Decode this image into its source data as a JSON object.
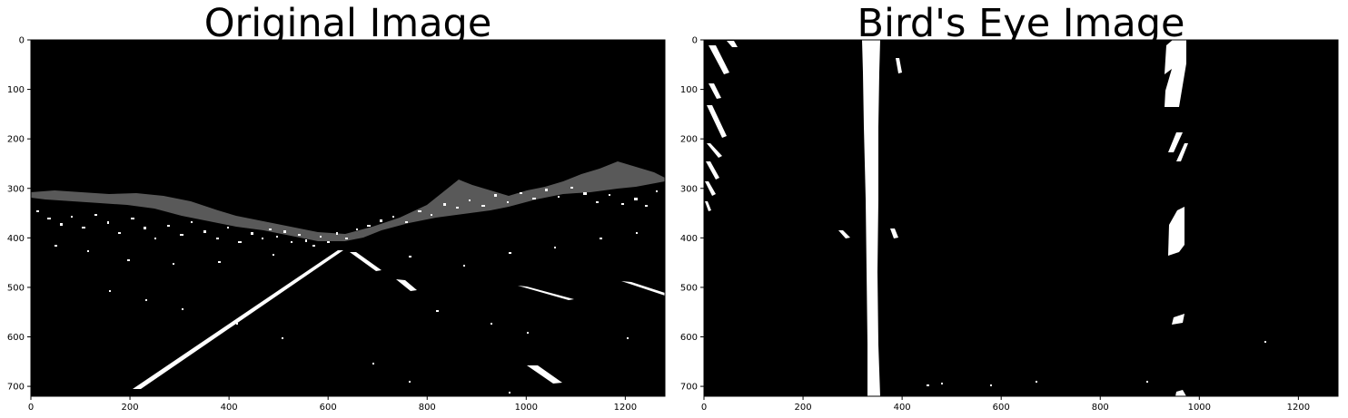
{
  "figure": {
    "panels": [
      {
        "id": "original",
        "title": "Original Image",
        "x_ticks": [
          "0",
          "200",
          "400",
          "600",
          "800",
          "1000",
          "1200"
        ],
        "y_ticks": [
          "0",
          "100",
          "200",
          "300",
          "400",
          "500",
          "600",
          "700"
        ],
        "x_tick_values": [
          0,
          200,
          400,
          600,
          800,
          1000,
          1200
        ],
        "y_tick_values": [
          0,
          100,
          200,
          300,
          400,
          500,
          600,
          700
        ],
        "image_width": 1280,
        "image_height": 720
      },
      {
        "id": "birdseye",
        "title": "Bird's Eye Image",
        "x_ticks": [
          "0",
          "200",
          "400",
          "600",
          "800",
          "1000",
          "1200"
        ],
        "y_ticks": [
          "0",
          "100",
          "200",
          "300",
          "400",
          "500",
          "600",
          "700"
        ],
        "x_tick_values": [
          0,
          200,
          400,
          600,
          800,
          1000,
          1200
        ],
        "y_tick_values": [
          0,
          100,
          200,
          300,
          400,
          500,
          600,
          700
        ],
        "image_width": 1280,
        "image_height": 720
      }
    ],
    "colors": {
      "background": "#ffffff",
      "image_background": "#000000",
      "foreground_pixels": "#ffffff"
    }
  }
}
